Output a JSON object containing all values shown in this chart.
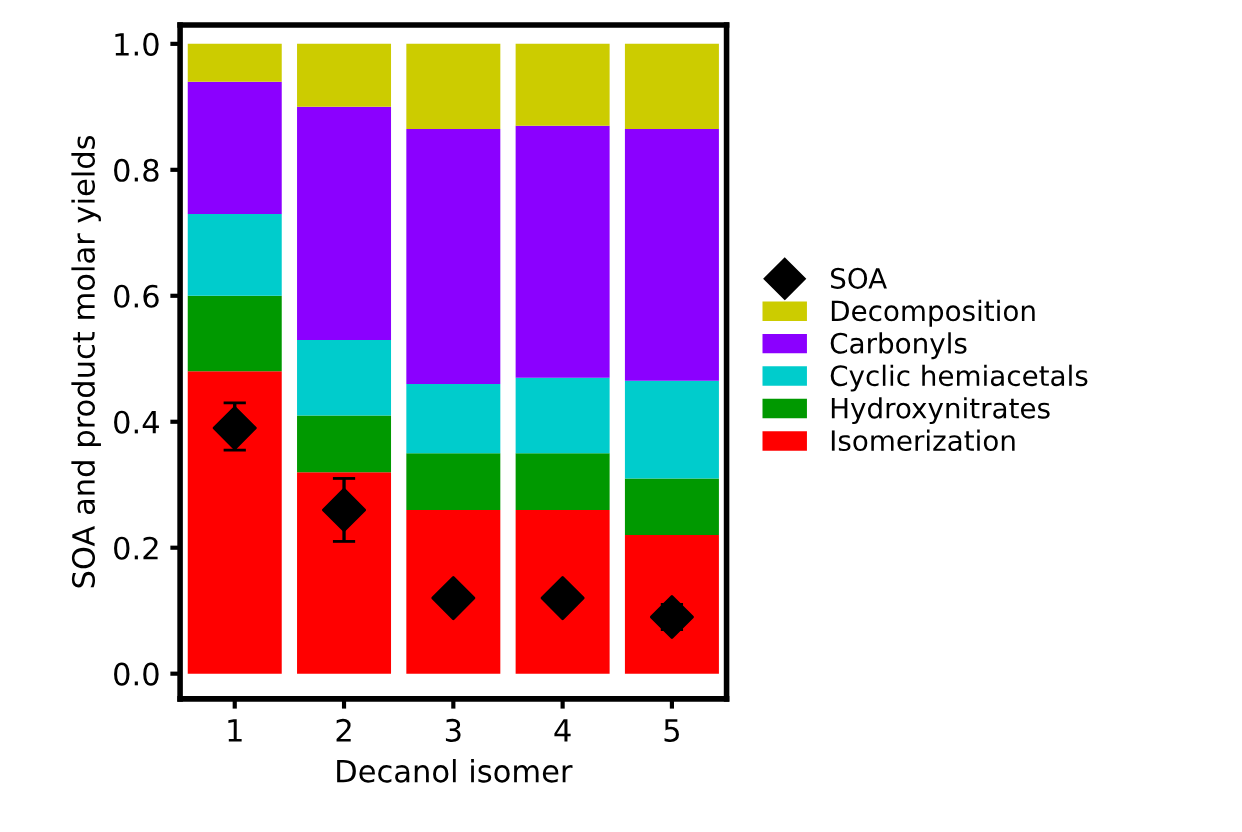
{
  "chart_data": {
    "type": "bar",
    "stacked": true,
    "xlabel": "Decanol isomer",
    "ylabel": "SOA and product molar yields",
    "categories": [
      "1",
      "2",
      "3",
      "4",
      "5"
    ],
    "series": [
      {
        "name": "Isomerization",
        "color": "#ff0000",
        "values": [
          0.48,
          0.32,
          0.26,
          0.26,
          0.22
        ]
      },
      {
        "name": "Hydroxynitrates",
        "color": "#009900",
        "values": [
          0.12,
          0.09,
          0.09,
          0.09,
          0.09
        ]
      },
      {
        "name": "Cyclic hemiacetals",
        "color": "#00cccc",
        "values": [
          0.13,
          0.12,
          0.11,
          0.12,
          0.155
        ]
      },
      {
        "name": "Carbonyls",
        "color": "#8b00ff",
        "values": [
          0.21,
          0.37,
          0.405,
          0.4,
          0.4
        ]
      },
      {
        "name": "Decomposition",
        "color": "#cccc00",
        "values": [
          0.06,
          0.1,
          0.135,
          0.13,
          0.135
        ]
      },
      {
        "name": "SOA",
        "type": "scatter",
        "marker": "diamond",
        "color": "#000000",
        "x": [
          "1",
          "2",
          "3",
          "4",
          "5"
        ],
        "values": [
          0.39,
          0.26,
          0.12,
          0.12,
          0.09
        ],
        "errors": [
          [
            0.355,
            0.43
          ],
          [
            0.21,
            0.31
          ],
          null,
          null,
          [
            0.07,
            0.11
          ]
        ]
      }
    ],
    "ylim": [
      -0.04,
      1.03
    ],
    "yticks": [
      {
        "value": 0,
        "label": "0.0"
      },
      {
        "value": 0.2,
        "label": "0.2"
      },
      {
        "value": 0.4,
        "label": "0.4"
      },
      {
        "value": 0.6,
        "label": "0.6"
      },
      {
        "value": 0.8,
        "label": "0.8"
      },
      {
        "value": 1,
        "label": "1.0"
      }
    ],
    "legend": "right",
    "grid": false
  }
}
